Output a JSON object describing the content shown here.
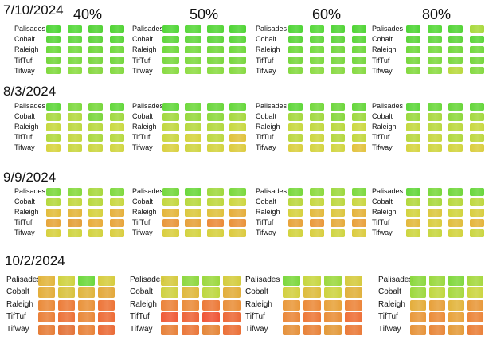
{
  "treatments": [
    "40%",
    "50%",
    "60%",
    "80%"
  ],
  "varieties": [
    "Palisades",
    "Cobalt",
    "Raleigh",
    "TifTuf",
    "Tifway"
  ],
  "rows": [
    {
      "date": "7/10/2024",
      "panels": [
        [
          [
            "#4cd534",
            "#55d83a",
            "#52d235",
            "#4fd332"
          ],
          [
            "#5ad43a",
            "#61d63e",
            "#5ed33b",
            "#59d538"
          ],
          [
            "#6cd93b",
            "#75da3f",
            "#6fd63a",
            "#70d83c"
          ],
          [
            "#74d63c",
            "#7bd940",
            "#79d63e",
            "#72d63b"
          ],
          [
            "#80d93e",
            "#8bdc42",
            "#86d740",
            "#83d93f"
          ]
        ],
        [
          [
            "#50d636",
            "#58d73a",
            "#54d537",
            "#4fd435"
          ],
          [
            "#5ed53b",
            "#63d63e",
            "#5fd53b",
            "#5cd53a"
          ],
          [
            "#6fd83b",
            "#76d93f",
            "#73d73c",
            "#70d83c"
          ],
          [
            "#79d73e",
            "#7fd940",
            "#7bd73e",
            "#77d63d"
          ],
          [
            "#88da41",
            "#8fdc44",
            "#8adb42",
            "#86d941"
          ]
        ],
        [
          [
            "#4ed535",
            "#56d839",
            "#51d436",
            "#4ed433"
          ],
          [
            "#5bd43a",
            "#62d63d",
            "#5fd43b",
            "#5ad538"
          ],
          [
            "#6ed83b",
            "#74da3e",
            "#72d63c",
            "#6ed73b"
          ],
          [
            "#77d63d",
            "#7cd93f",
            "#7ad73e",
            "#74d63c"
          ],
          [
            "#84d940",
            "#8cdb43",
            "#88d942",
            "#85d940"
          ]
        ],
        [
          [
            "#4dd434",
            "#57d839",
            "#53d436",
            "#a8d93c"
          ],
          [
            "#5cd43a",
            "#63d63e",
            "#5ed43b",
            "#5bd539"
          ],
          [
            "#70d83c",
            "#77da3f",
            "#72d73c",
            "#71d83c"
          ],
          [
            "#78d73d",
            "#7ed940",
            "#7bd73e",
            "#75d63c"
          ],
          [
            "#83d93f",
            "#8cdb43",
            "#b9d93e",
            "#84d940"
          ]
        ]
      ]
    },
    {
      "date": "8/3/2024",
      "panels": [
        [
          [
            "#5fd63a",
            "#7ed93f",
            "#78d73d",
            "#62d73a"
          ],
          [
            "#a8d83f",
            "#b3d940",
            "#7bd63d",
            "#9fd83e"
          ],
          [
            "#c6d83f",
            "#bcd83f",
            "#b8d83e",
            "#c9d940"
          ],
          [
            "#b1d83e",
            "#c3d740",
            "#aad83e",
            "#b6d83f"
          ],
          [
            "#d7d43f",
            "#c9d640",
            "#cbd640",
            "#d0d540"
          ]
        ],
        [
          [
            "#63d73b",
            "#6fd83c",
            "#6ad63b",
            "#66d73b"
          ],
          [
            "#a2d83e",
            "#96d83d",
            "#8ed83d",
            "#a6d83e"
          ],
          [
            "#c0d73f",
            "#b6d83f",
            "#b2d83e",
            "#c7d840"
          ],
          [
            "#c9d640",
            "#d5d43f",
            "#bcd73f",
            "#e0c23d"
          ],
          [
            "#d9d03f",
            "#cfd440",
            "#d3d33f",
            "#dccb3e"
          ]
        ],
        [
          [
            "#5fd73a",
            "#74d83c",
            "#6dd63b",
            "#65d63a"
          ],
          [
            "#a5d83e",
            "#a1d83e",
            "#86d73d",
            "#9dd83e"
          ],
          [
            "#c7d83f",
            "#c1d83f",
            "#b9d83e",
            "#cbd840"
          ],
          [
            "#bbd73f",
            "#ccd640",
            "#b4d73f",
            "#c2d73f"
          ],
          [
            "#dacf3f",
            "#d4d33f",
            "#d1d540",
            "#e2c23d"
          ]
        ],
        [
          [
            "#5dd63a",
            "#6cd83c",
            "#6ad63b",
            "#64d63a"
          ],
          [
            "#9ad83e",
            "#a9d83e",
            "#8ed83d",
            "#a3d83e"
          ],
          [
            "#c3d83f",
            "#b9d83f",
            "#bbd83f",
            "#c8d840"
          ],
          [
            "#b8d73f",
            "#c6d740",
            "#b1d83e",
            "#bdd73f"
          ],
          [
            "#d5d43f",
            "#cfd540",
            "#d2d43f",
            "#dacd3e"
          ]
        ]
      ]
    },
    {
      "date": "9/9/2024",
      "panels": [
        [
          [
            "#7cd83d",
            "#86d93e",
            "#a8d83e",
            "#7ed83d"
          ],
          [
            "#b5d83e",
            "#c2d73f",
            "#b9d83e",
            "#c8d740"
          ],
          [
            "#e2bd3c",
            "#e3b63b",
            "#d6d13f",
            "#e5b03b"
          ],
          [
            "#e6a63a",
            "#e39f39",
            "#e8ac3b",
            "#e7a43a"
          ],
          [
            "#d7d03f",
            "#cfd440",
            "#d2d23f",
            "#d9cd3e"
          ]
        ],
        [
          [
            "#74d73c",
            "#6ad73b",
            "#a0d83e",
            "#7ad83c"
          ],
          [
            "#c3d73f",
            "#b8d83e",
            "#bfd73f",
            "#cdd640"
          ],
          [
            "#e4b63b",
            "#dbc83e",
            "#dfc13d",
            "#e5ae3b"
          ],
          [
            "#e8963a",
            "#e6a13a",
            "#eb8b39",
            "#e99239"
          ],
          [
            "#d9ce3f",
            "#d3d23f",
            "#d6d03f",
            "#dcca3e"
          ]
        ],
        [
          [
            "#78d83c",
            "#8cd93e",
            "#9dd83e",
            "#7bd83c"
          ],
          [
            "#bbd73f",
            "#c6d740",
            "#bdd73f",
            "#c9d640"
          ],
          [
            "#d6d13f",
            "#e2b93c",
            "#dcc63e",
            "#e4b33b"
          ],
          [
            "#e7a33a",
            "#e9983a",
            "#e5ab3b",
            "#e8a03a"
          ],
          [
            "#d2d33f",
            "#d8ce3f",
            "#cfd440",
            "#dbcb3e"
          ]
        ],
        [
          [
            "#62d63b",
            "#7ad83c",
            "#72d73c",
            "#68d63b"
          ],
          [
            "#b3d83e",
            "#a9d83e",
            "#b8d83e",
            "#bed73f"
          ],
          [
            "#d3d33f",
            "#dbc73e",
            "#d1d43f",
            "#d8cd3f"
          ],
          [
            "#e2b93c",
            "#d9cc3e",
            "#e0bd3d",
            "#e4b43b"
          ],
          [
            "#cdd540",
            "#c7d640",
            "#d2d33f",
            "#cad540"
          ]
        ]
      ]
    },
    {
      "date": "10/2/2024",
      "panels": [
        [
          [
            "#e2b53c",
            "#cfd23f",
            "#6cd83c",
            "#d6cc3e"
          ],
          [
            "#e3ae3b",
            "#d9c23e",
            "#e0b43c",
            "#e3a83b"
          ],
          [
            "#ea8a39",
            "#ec7c38",
            "#e99239",
            "#ed7437"
          ],
          [
            "#ea8039",
            "#ec7238",
            "#e98839",
            "#ed6c37"
          ],
          [
            "#e67d38",
            "#e37339",
            "#e88239",
            "#ea6b37"
          ]
        ],
        [
          [
            "#d5ca3e",
            "#8dd73e",
            "#9bd83e",
            "#d4cc3e"
          ],
          [
            "#cfd13f",
            "#dfb83c",
            "#bdd73f",
            "#e2ae3b"
          ],
          [
            "#eb8239",
            "#ea8b39",
            "#ec7938",
            "#e98f39"
          ],
          [
            "#ef5a36",
            "#ed6337",
            "#ef5536",
            "#ec6937"
          ],
          [
            "#e78038",
            "#ea7638",
            "#e58639",
            "#eb7037"
          ]
        ],
        [
          [
            "#7bd73c",
            "#c7d640",
            "#9cd83e",
            "#d5ca3e"
          ],
          [
            "#d2cf3f",
            "#ddbc3d",
            "#cdd33f",
            "#e0b13c"
          ],
          [
            "#e9983a",
            "#eb8a39",
            "#e7a23a",
            "#ec8439"
          ],
          [
            "#ea8739",
            "#ed7838",
            "#e98f39",
            "#ee6f37"
          ],
          [
            "#e5903a",
            "#e88239",
            "#e3993a",
            "#ea7a38"
          ]
        ],
        [
          [
            "#8bd83e",
            "#9ad83e",
            "#80d83d",
            "#a5d83e"
          ],
          [
            "#9dd83e",
            "#c0d73f",
            "#a7d83e",
            "#cbd540"
          ],
          [
            "#e4ad3b",
            "#e7a03a",
            "#e2b43c",
            "#e8983a"
          ],
          [
            "#e9983a",
            "#eb8c39",
            "#e8a23a",
            "#ec8539"
          ],
          [
            "#e6933a",
            "#e88739",
            "#e49b3a",
            "#ea7f38"
          ]
        ]
      ]
    }
  ]
}
